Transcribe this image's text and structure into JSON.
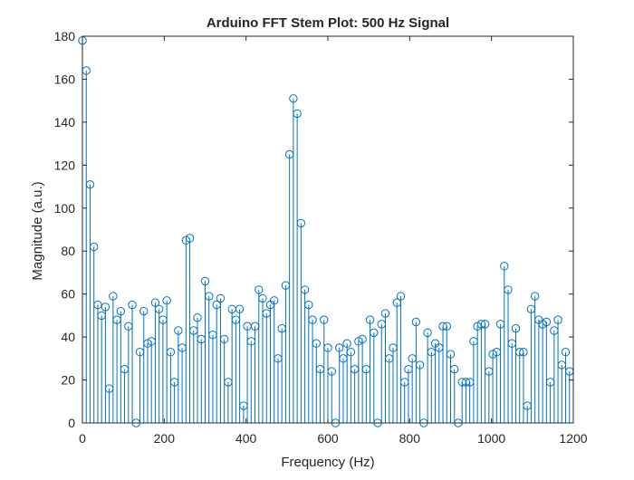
{
  "chart_data": {
    "type": "stem",
    "title": "Arduino FFT Stem Plot: 500 Hz Signal",
    "xlabel": "Frequency (Hz)",
    "ylabel": "Magnitude (a.u.)",
    "xlim": [
      0,
      1200
    ],
    "ylim": [
      0,
      180
    ],
    "xticks": [
      0,
      200,
      400,
      600,
      800,
      1000,
      1200
    ],
    "yticks": [
      0,
      20,
      40,
      60,
      80,
      100,
      120,
      140,
      160,
      180
    ],
    "grid": false,
    "colors": {
      "series": "#0072BD",
      "axis": "#262626"
    },
    "x_step": 9.375,
    "values": [
      178,
      164,
      111,
      82,
      55,
      50,
      54,
      16,
      59,
      48,
      52,
      25,
      45,
      55,
      0,
      33,
      52,
      37,
      38,
      56,
      53,
      48,
      57,
      33,
      19,
      43,
      35,
      85,
      86,
      43,
      49,
      39,
      66,
      59,
      41,
      55,
      58,
      39,
      19,
      53,
      48,
      53,
      8,
      45,
      38,
      45,
      62,
      58,
      51,
      55,
      57,
      30,
      44,
      64,
      125,
      151,
      144,
      93,
      62,
      55,
      48,
      37,
      25,
      48,
      35,
      24,
      0,
      35,
      30,
      37,
      33,
      25,
      38,
      39,
      25,
      48,
      42,
      0,
      46,
      51,
      30,
      35,
      56,
      59,
      19,
      25,
      30,
      47,
      27,
      0,
      42,
      33,
      37,
      35,
      45,
      45,
      32,
      25,
      0,
      19,
      19,
      19,
      38,
      45,
      46,
      46,
      24,
      32,
      33,
      46,
      73,
      62,
      37,
      44,
      33,
      33,
      8,
      53,
      59,
      48,
      46,
      47,
      19,
      43,
      48,
      27,
      33,
      24
    ]
  }
}
